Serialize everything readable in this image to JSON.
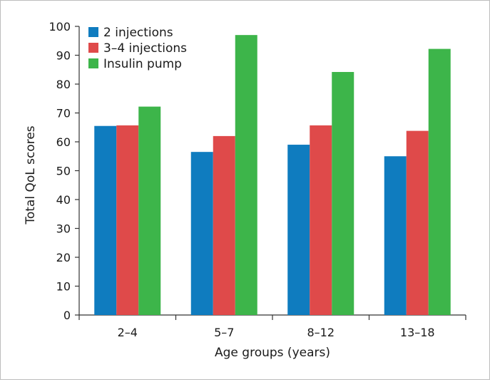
{
  "chart_data": {
    "type": "bar",
    "title": "",
    "xlabel": "Age groups (years)",
    "ylabel": "Total QoL scores",
    "categories": [
      "2–4",
      "5–7",
      "8–12",
      "13–18"
    ],
    "series": [
      {
        "name": "2 injections",
        "color": "#0f7cbf",
        "values": [
          65.5,
          56.5,
          59,
          55
        ]
      },
      {
        "name": "3–4 injections",
        "color": "#df4a4a",
        "values": [
          65.7,
          62,
          65.7,
          63.8
        ]
      },
      {
        "name": "Insulin pump",
        "color": "#3db54a",
        "values": [
          72.2,
          97,
          84.2,
          92.2
        ]
      }
    ],
    "ylim": [
      0,
      100
    ],
    "yticks": [
      0,
      10,
      20,
      30,
      40,
      50,
      60,
      70,
      80,
      90,
      100
    ],
    "grid": false,
    "legend_position": "top-left"
  }
}
